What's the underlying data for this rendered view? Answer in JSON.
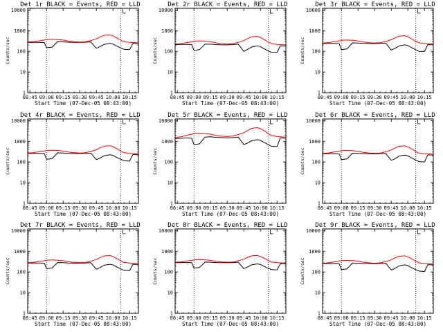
{
  "chart_data": [
    {
      "type": "line",
      "title": "Det 1r BLACK = Events, RED = LLD",
      "xlabel": "Start Time (07-Dec-05 08:43:00)",
      "ylabel": "Counts/sec",
      "x_tick_labels": [
        "08:45",
        "09:00",
        "09:15",
        "09:30",
        "09:45",
        "10:00",
        "10:15"
      ],
      "y_tick_labels": [
        "1",
        "10",
        "100",
        "1000",
        "10000"
      ],
      "ylim": [
        1,
        12000
      ],
      "y_scale": "log",
      "xlim": [
        "08:43",
        "10:23"
      ],
      "attenuator_lines": [
        "09:00",
        "10:07"
      ],
      "x": [
        "08:43",
        "08:48",
        "08:53",
        "08:58",
        "09:00",
        "09:05",
        "09:10",
        "09:15",
        "09:20",
        "09:25",
        "09:30",
        "09:35",
        "09:40",
        "09:45",
        "09:48",
        "09:52",
        "09:57",
        "10:00",
        "10:03",
        "10:07",
        "10:10",
        "10:15",
        "10:18",
        "10:23"
      ],
      "series": [
        {
          "name": "BLACK",
          "color": "#000000",
          "values": [
            265,
            270,
            270,
            265,
            150,
            160,
            290,
            285,
            275,
            270,
            270,
            275,
            285,
            140,
            165,
            215,
            240,
            225,
            185,
            145,
            125,
            120,
            240,
            230
          ]
        },
        {
          "name": "RED",
          "color": "#ff0000",
          "values": [
            280,
            290,
            320,
            350,
            370,
            380,
            370,
            350,
            310,
            290,
            280,
            290,
            330,
            400,
            480,
            590,
            620,
            560,
            460,
            350,
            290,
            270,
            265,
            260
          ]
        }
      ]
    },
    {
      "type": "line",
      "title": "Det 2r BLACK = Events, RED = LLD",
      "xlabel": "Start Time (07-Dec-05 08:43:00)",
      "ylabel": "Counts/sec",
      "x_tick_labels": [
        "08:45",
        "09:00",
        "09:15",
        "09:30",
        "09:45",
        "10:00",
        "10:15"
      ],
      "y_tick_labels": [
        "1",
        "10",
        "100",
        "1000",
        "10000"
      ],
      "ylim": [
        1,
        12000
      ],
      "y_scale": "log",
      "xlim": [
        "08:43",
        "10:23"
      ],
      "attenuator_lines": [
        "09:00",
        "10:07"
      ],
      "x": [
        "08:43",
        "08:48",
        "08:53",
        "08:58",
        "09:00",
        "09:05",
        "09:10",
        "09:15",
        "09:20",
        "09:25",
        "09:30",
        "09:35",
        "09:40",
        "09:45",
        "09:48",
        "09:52",
        "09:57",
        "10:00",
        "10:03",
        "10:07",
        "10:10",
        "10:15",
        "10:18",
        "10:23"
      ],
      "series": [
        {
          "name": "BLACK",
          "color": "#000000",
          "values": [
            210,
            215,
            215,
            210,
            110,
            120,
            225,
            220,
            210,
            205,
            205,
            210,
            220,
            100,
            120,
            160,
            185,
            170,
            135,
            105,
            90,
            88,
            185,
            180
          ]
        },
        {
          "name": "RED",
          "color": "#ff0000",
          "values": [
            225,
            235,
            260,
            290,
            310,
            320,
            310,
            290,
            255,
            235,
            225,
            235,
            270,
            330,
            400,
            500,
            530,
            470,
            380,
            280,
            235,
            215,
            210,
            205
          ]
        }
      ]
    },
    {
      "type": "line",
      "title": "Det 3r BLACK = Events, RED = LLD",
      "xlabel": "Start Time (07-Dec-05 08:43:00)",
      "ylabel": "Counts/sec",
      "x_tick_labels": [
        "08:45",
        "09:00",
        "09:15",
        "09:30",
        "09:45",
        "10:00",
        "10:15"
      ],
      "y_tick_labels": [
        "1",
        "10",
        "100",
        "1000",
        "10000"
      ],
      "ylim": [
        1,
        12000
      ],
      "y_scale": "log",
      "xlim": [
        "08:43",
        "10:23"
      ],
      "attenuator_lines": [
        "09:00",
        "10:07"
      ],
      "x": [
        "08:43",
        "08:48",
        "08:53",
        "08:58",
        "09:00",
        "09:05",
        "09:10",
        "09:15",
        "09:20",
        "09:25",
        "09:30",
        "09:35",
        "09:40",
        "09:45",
        "09:48",
        "09:52",
        "09:57",
        "10:00",
        "10:03",
        "10:07",
        "10:10",
        "10:15",
        "10:18",
        "10:23"
      ],
      "series": [
        {
          "name": "BLACK",
          "color": "#000000",
          "values": [
            235,
            240,
            240,
            235,
            120,
            130,
            255,
            250,
            240,
            235,
            235,
            240,
            250,
            115,
            135,
            180,
            205,
            190,
            155,
            120,
            100,
            98,
            210,
            205
          ]
        },
        {
          "name": "RED",
          "color": "#ff0000",
          "values": [
            250,
            260,
            290,
            320,
            340,
            350,
            340,
            320,
            280,
            260,
            250,
            260,
            300,
            360,
            430,
            540,
            570,
            510,
            410,
            310,
            260,
            240,
            235,
            230
          ]
        }
      ]
    },
    {
      "type": "line",
      "title": "Det 4r BLACK = Events, RED = LLD",
      "xlabel": "Start Time (07-Dec-05 08:43:00)",
      "ylabel": "Counts/sec",
      "x_tick_labels": [
        "08:45",
        "09:00",
        "09:15",
        "09:30",
        "09:45",
        "10:00",
        "10:15"
      ],
      "y_tick_labels": [
        "1",
        "10",
        "100",
        "1000",
        "10000"
      ],
      "ylim": [
        1,
        12000
      ],
      "y_scale": "log",
      "xlim": [
        "08:43",
        "10:23"
      ],
      "attenuator_lines": [
        "09:00",
        "10:07"
      ],
      "x": [
        "08:43",
        "08:48",
        "08:53",
        "08:58",
        "09:00",
        "09:05",
        "09:10",
        "09:15",
        "09:20",
        "09:25",
        "09:30",
        "09:35",
        "09:40",
        "09:45",
        "09:48",
        "09:52",
        "09:57",
        "10:00",
        "10:03",
        "10:07",
        "10:10",
        "10:15",
        "10:18",
        "10:23"
      ],
      "series": [
        {
          "name": "BLACK",
          "color": "#000000",
          "values": [
            255,
            260,
            260,
            255,
            135,
            145,
            275,
            270,
            260,
            255,
            255,
            260,
            270,
            130,
            150,
            200,
            225,
            210,
            170,
            135,
            115,
            110,
            230,
            225
          ]
        },
        {
          "name": "RED",
          "color": "#ff0000",
          "values": [
            270,
            280,
            310,
            340,
            360,
            370,
            360,
            340,
            300,
            280,
            270,
            280,
            320,
            390,
            470,
            580,
            610,
            550,
            450,
            340,
            280,
            260,
            255,
            250
          ]
        }
      ]
    },
    {
      "type": "line",
      "title": "Det 5r BLACK = Events, RED = LLD",
      "xlabel": "Start Time (07-Dec-05 08:43:00)",
      "ylabel": "Counts/sec",
      "x_tick_labels": [
        "08:45",
        "09:00",
        "09:15",
        "09:30",
        "09:45",
        "10:00",
        "10:15"
      ],
      "y_tick_labels": [
        "1",
        "10",
        "100",
        "1000",
        "10000"
      ],
      "ylim": [
        1,
        12000
      ],
      "y_scale": "log",
      "xlim": [
        "08:43",
        "10:23"
      ],
      "attenuator_lines": [
        "09:00",
        "10:07"
      ],
      "x": [
        "08:43",
        "08:48",
        "08:53",
        "08:58",
        "09:00",
        "09:05",
        "09:10",
        "09:15",
        "09:20",
        "09:25",
        "09:30",
        "09:35",
        "09:40",
        "09:45",
        "09:48",
        "09:52",
        "09:57",
        "10:00",
        "10:03",
        "10:07",
        "10:10",
        "10:15",
        "10:18",
        "10:23"
      ],
      "series": [
        {
          "name": "BLACK",
          "color": "#000000",
          "values": [
            1350,
            1400,
            1450,
            1400,
            700,
            750,
            1600,
            1650,
            1550,
            1500,
            1450,
            1500,
            1600,
            700,
            800,
            1050,
            1200,
            1100,
            900,
            700,
            580,
            550,
            1450,
            1400
          ]
        },
        {
          "name": "RED",
          "color": "#ff0000",
          "values": [
            1500,
            1650,
            1900,
            2200,
            2400,
            2500,
            2400,
            2200,
            1900,
            1750,
            1700,
            1800,
            2100,
            2600,
            3200,
            4200,
            4600,
            4100,
            3300,
            2400,
            1900,
            1700,
            1650,
            1600
          ]
        }
      ]
    },
    {
      "type": "line",
      "title": "Det 6r BLACK = Events, RED = LLD",
      "xlabel": "Start Time (07-Dec-05 08:43:00)",
      "ylabel": "Counts/sec",
      "x_tick_labels": [
        "08:45",
        "09:00",
        "09:15",
        "09:30",
        "09:45",
        "10:00",
        "10:15"
      ],
      "y_tick_labels": [
        "1",
        "10",
        "100",
        "1000",
        "10000"
      ],
      "ylim": [
        1,
        12000
      ],
      "y_scale": "log",
      "xlim": [
        "08:43",
        "10:23"
      ],
      "attenuator_lines": [
        "09:00",
        "10:07"
      ],
      "x": [
        "08:43",
        "08:48",
        "08:53",
        "08:58",
        "09:00",
        "09:05",
        "09:10",
        "09:15",
        "09:20",
        "09:25",
        "09:30",
        "09:35",
        "09:40",
        "09:45",
        "09:48",
        "09:52",
        "09:57",
        "10:00",
        "10:03",
        "10:07",
        "10:10",
        "10:15",
        "10:18",
        "10:23"
      ],
      "series": [
        {
          "name": "BLACK",
          "color": "#000000",
          "values": [
            245,
            250,
            250,
            245,
            130,
            140,
            265,
            260,
            250,
            245,
            245,
            250,
            260,
            120,
            140,
            190,
            215,
            200,
            160,
            125,
            105,
            100,
            220,
            215
          ]
        },
        {
          "name": "RED",
          "color": "#ff0000",
          "values": [
            260,
            270,
            300,
            330,
            350,
            360,
            350,
            330,
            290,
            270,
            260,
            270,
            310,
            380,
            460,
            570,
            600,
            540,
            440,
            330,
            270,
            250,
            245,
            240
          ]
        }
      ]
    },
    {
      "type": "line",
      "title": "Det 7r BLACK = Events, RED = LLD",
      "xlabel": "Start Time (07-Dec-05 08:43:00)",
      "ylabel": "Counts/sec",
      "x_tick_labels": [
        "08:45",
        "09:00",
        "09:15",
        "09:30",
        "09:45",
        "10:00",
        "10:15"
      ],
      "y_tick_labels": [
        "1",
        "10",
        "100",
        "1000",
        "10000"
      ],
      "ylim": [
        1,
        12000
      ],
      "y_scale": "log",
      "xlim": [
        "08:43",
        "10:23"
      ],
      "attenuator_lines": [
        "09:00",
        "10:07"
      ],
      "x": [
        "08:43",
        "08:48",
        "08:53",
        "08:58",
        "09:00",
        "09:05",
        "09:10",
        "09:15",
        "09:20",
        "09:25",
        "09:30",
        "09:35",
        "09:40",
        "09:45",
        "09:48",
        "09:52",
        "09:57",
        "10:00",
        "10:03",
        "10:07",
        "10:10",
        "10:15",
        "10:18",
        "10:23"
      ],
      "series": [
        {
          "name": "BLACK",
          "color": "#000000",
          "values": [
            265,
            270,
            270,
            265,
            145,
            155,
            285,
            280,
            270,
            265,
            265,
            270,
            280,
            135,
            160,
            210,
            235,
            220,
            180,
            140,
            120,
            115,
            235,
            230
          ]
        },
        {
          "name": "RED",
          "color": "#ff0000",
          "values": [
            280,
            290,
            320,
            350,
            370,
            380,
            370,
            350,
            310,
            290,
            280,
            290,
            330,
            400,
            480,
            590,
            620,
            560,
            460,
            350,
            290,
            270,
            265,
            260
          ]
        }
      ]
    },
    {
      "type": "line",
      "title": "Det 8r BLACK = Events, RED = LLD",
      "xlabel": "Start Time (07-Dec-05 08:43:00)",
      "ylabel": "Counts/sec",
      "x_tick_labels": [
        "08:45",
        "09:00",
        "09:15",
        "09:30",
        "09:45",
        "10:00",
        "10:15"
      ],
      "y_tick_labels": [
        "1",
        "10",
        "100",
        "1000",
        "10000"
      ],
      "ylim": [
        1,
        12000
      ],
      "y_scale": "log",
      "xlim": [
        "08:43",
        "10:23"
      ],
      "attenuator_lines": [
        "09:00",
        "10:07"
      ],
      "x": [
        "08:43",
        "08:48",
        "08:53",
        "08:58",
        "09:00",
        "09:05",
        "09:10",
        "09:15",
        "09:20",
        "09:25",
        "09:30",
        "09:35",
        "09:40",
        "09:45",
        "09:48",
        "09:52",
        "09:57",
        "10:00",
        "10:03",
        "10:07",
        "10:10",
        "10:15",
        "10:18",
        "10:23"
      ],
      "series": [
        {
          "name": "BLACK",
          "color": "#000000",
          "values": [
            280,
            285,
            285,
            280,
            155,
            165,
            300,
            295,
            285,
            280,
            280,
            285,
            295,
            145,
            170,
            220,
            245,
            230,
            190,
            150,
            130,
            125,
            250,
            245
          ]
        },
        {
          "name": "RED",
          "color": "#ff0000",
          "values": [
            295,
            305,
            335,
            365,
            385,
            395,
            385,
            365,
            325,
            305,
            295,
            305,
            345,
            415,
            495,
            600,
            630,
            570,
            470,
            360,
            300,
            280,
            275,
            270
          ]
        }
      ]
    },
    {
      "type": "line",
      "title": "Det 9r BLACK = Events, RED = LLD",
      "xlabel": "Start Time (07-Dec-05 08:43:00)",
      "ylabel": "Counts/sec",
      "x_tick_labels": [
        "08:45",
        "09:00",
        "09:15",
        "09:30",
        "09:45",
        "10:00",
        "10:15"
      ],
      "y_tick_labels": [
        "1",
        "10",
        "100",
        "1000",
        "10000"
      ],
      "ylim": [
        1,
        12000
      ],
      "y_scale": "log",
      "xlim": [
        "08:43",
        "10:23"
      ],
      "attenuator_lines": [
        "09:00",
        "10:07"
      ],
      "x": [
        "08:43",
        "08:48",
        "08:53",
        "08:58",
        "09:00",
        "09:05",
        "09:10",
        "09:15",
        "09:20",
        "09:25",
        "09:30",
        "09:35",
        "09:40",
        "09:45",
        "09:48",
        "09:52",
        "09:57",
        "10:00",
        "10:03",
        "10:07",
        "10:10",
        "10:15",
        "10:18",
        "10:23"
      ],
      "series": [
        {
          "name": "BLACK",
          "color": "#000000",
          "values": [
            250,
            255,
            255,
            250,
            130,
            140,
            270,
            265,
            255,
            250,
            250,
            255,
            265,
            125,
            145,
            195,
            220,
            205,
            165,
            130,
            110,
            105,
            225,
            220
          ]
        },
        {
          "name": "RED",
          "color": "#ff0000",
          "values": [
            265,
            275,
            305,
            335,
            355,
            365,
            355,
            335,
            295,
            275,
            265,
            275,
            315,
            385,
            465,
            570,
            600,
            540,
            440,
            335,
            275,
            255,
            250,
            245
          ]
        }
      ]
    }
  ]
}
